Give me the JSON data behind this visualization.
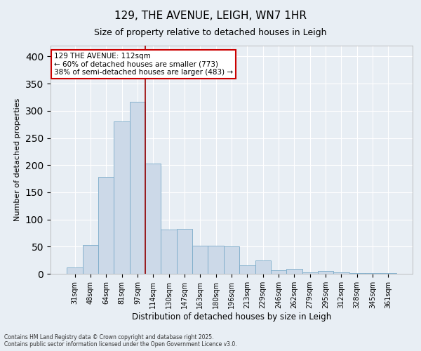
{
  "title": "129, THE AVENUE, LEIGH, WN7 1HR",
  "subtitle": "Size of property relative to detached houses in Leigh",
  "xlabel": "Distribution of detached houses by size in Leigh",
  "ylabel": "Number of detached properties",
  "bar_color": "#ccd9e8",
  "bar_edge_color": "#7aaac8",
  "categories": [
    "31sqm",
    "48sqm",
    "64sqm",
    "81sqm",
    "97sqm",
    "114sqm",
    "130sqm",
    "147sqm",
    "163sqm",
    "180sqm",
    "196sqm",
    "213sqm",
    "229sqm",
    "246sqm",
    "262sqm",
    "279sqm",
    "295sqm",
    "312sqm",
    "328sqm",
    "345sqm",
    "361sqm"
  ],
  "values": [
    11,
    53,
    178,
    281,
    317,
    203,
    82,
    83,
    52,
    52,
    50,
    15,
    25,
    7,
    9,
    3,
    5,
    2,
    1,
    1,
    1
  ],
  "vline_idx": 5,
  "vline_color": "#990000",
  "annotation_text": "129 THE AVENUE: 112sqm\n← 60% of detached houses are smaller (773)\n38% of semi-detached houses are larger (483) →",
  "annotation_box_color": "#ffffff",
  "annotation_edge_color": "#cc0000",
  "ylim": [
    0,
    420
  ],
  "yticks": [
    0,
    50,
    100,
    150,
    200,
    250,
    300,
    350,
    400
  ],
  "background_color": "#e8eef4",
  "grid_color": "#ffffff",
  "footer_line1": "Contains HM Land Registry data © Crown copyright and database right 2025.",
  "footer_line2": "Contains public sector information licensed under the Open Government Licence v3.0."
}
